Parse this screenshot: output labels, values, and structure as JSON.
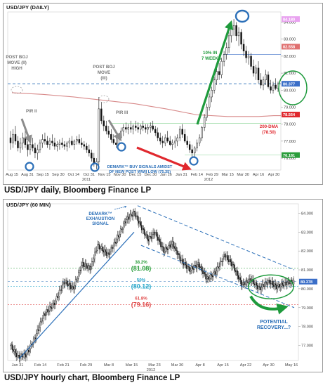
{
  "captions": {
    "daily": "USD/JPY daily, Bloomberg Finance LP",
    "hourly": "USD/JPY hourly chart, Bloomberg Finance LP"
  },
  "colors": {
    "candle": "#111111",
    "dma": "#d88a8a",
    "dashed_blue": "#2b6fb8",
    "green": "#1e9a3c",
    "red": "#e0282e",
    "gray_arrow": "#8c8c8c",
    "fib_green": "#2a9d3b",
    "fib_cyan": "#27a6c9",
    "fib_red": "#e04a4a"
  },
  "chart_data": [
    {
      "type": "candlestick",
      "title": "USD/JPY (DAILY)",
      "x_tick_labels": [
        "Aug 15",
        "Aug 31",
        "Sep 15",
        "Sep 30",
        "Oct 14",
        "Oct 31",
        "Nov 15",
        "Nov 30",
        "Dec 15",
        "Dec 30",
        "Jan 16",
        "Jan 31",
        "Feb 14",
        "Feb 29",
        "Mar 15",
        "Mar 30",
        "Apr 16",
        "Apr 30"
      ],
      "x_year_labels": [
        "2011",
        "2012"
      ],
      "y_tick_labels": [
        "84.000",
        "83.000",
        "82.000",
        "81.000",
        "80.000",
        "79.000",
        "78.000",
        "77.000",
        "76.000"
      ],
      "ylim": [
        75.3,
        84.6
      ],
      "highlighted_levels": [
        {
          "label": "84.180",
          "value": 84.18,
          "color": "#e9a3f0"
        },
        {
          "label": "82.558",
          "value": 82.558,
          "color": "#e07070"
        },
        {
          "label": "80.377",
          "value": 80.377,
          "color": "#3a6ec8"
        },
        {
          "label": "78.564",
          "value": 78.564,
          "color": "#e0282e"
        },
        {
          "label": "76.181",
          "value": 76.181,
          "color": "#2a9d3b"
        }
      ],
      "series": [
        {
          "name": "200-DMA",
          "label": "200-DMA",
          "label_value": "(78.50)",
          "x": [
            "Aug 15",
            "Sep 15",
            "Oct 14",
            "Nov 15",
            "Dec 15",
            "Jan 16",
            "Feb 14",
            "Mar 15",
            "Apr 16",
            "Apr 30"
          ],
          "values": [
            79.85,
            79.75,
            79.6,
            79.4,
            79.2,
            78.9,
            78.55,
            78.45,
            78.45,
            78.5
          ]
        }
      ],
      "annotations": {
        "post_boj_ii": "POST BOJ MOVE (II) HIGH",
        "post_boj_iii": "POST BOJ MOVE (III)",
        "pir_ii": "PIR II",
        "pir_iii": "PIR III",
        "rally": "10% IN 7 WEEKS",
        "demark": "DEMARK™ BUY SIGNALS AMIDST OF NEW POST WWII LOW (75.35)"
      },
      "bars": [
        {
          "o": 77.2,
          "h": 77.6,
          "l": 76.5,
          "c": 76.9
        },
        {
          "o": 76.9,
          "h": 77.7,
          "l": 76.6,
          "c": 77.4
        },
        {
          "o": 77.4,
          "h": 77.9,
          "l": 76.8,
          "c": 77.0
        },
        {
          "o": 77.0,
          "h": 77.3,
          "l": 76.4,
          "c": 76.6
        },
        {
          "o": 76.6,
          "h": 77.2,
          "l": 76.3,
          "c": 76.9
        },
        {
          "o": 76.9,
          "h": 77.5,
          "l": 76.5,
          "c": 77.2
        },
        {
          "o": 77.2,
          "h": 77.6,
          "l": 76.6,
          "c": 76.8
        },
        {
          "o": 76.8,
          "h": 77.0,
          "l": 76.1,
          "c": 76.5
        },
        {
          "o": 76.5,
          "h": 77.0,
          "l": 76.2,
          "c": 76.8
        },
        {
          "o": 76.8,
          "h": 77.2,
          "l": 76.4,
          "c": 76.6
        },
        {
          "o": 76.6,
          "h": 76.9,
          "l": 76.0,
          "c": 76.3
        },
        {
          "o": 76.3,
          "h": 76.8,
          "l": 75.9,
          "c": 76.5
        },
        {
          "o": 76.5,
          "h": 77.1,
          "l": 76.3,
          "c": 76.9
        },
        {
          "o": 76.9,
          "h": 77.4,
          "l": 76.6,
          "c": 77.1
        },
        {
          "o": 77.1,
          "h": 77.5,
          "l": 76.8,
          "c": 77.0
        },
        {
          "o": 77.0,
          "h": 77.3,
          "l": 76.6,
          "c": 76.8
        },
        {
          "o": 76.8,
          "h": 77.2,
          "l": 76.5,
          "c": 77.0
        },
        {
          "o": 77.0,
          "h": 77.4,
          "l": 76.7,
          "c": 76.9
        },
        {
          "o": 76.9,
          "h": 77.2,
          "l": 76.5,
          "c": 76.7
        },
        {
          "o": 76.7,
          "h": 77.0,
          "l": 76.4,
          "c": 76.8
        },
        {
          "o": 76.8,
          "h": 77.1,
          "l": 76.5,
          "c": 76.9
        },
        {
          "o": 76.9,
          "h": 77.2,
          "l": 76.6,
          "c": 76.8
        },
        {
          "o": 76.8,
          "h": 77.0,
          "l": 76.5,
          "c": 76.7
        },
        {
          "o": 76.7,
          "h": 77.0,
          "l": 76.4,
          "c": 76.9
        },
        {
          "o": 76.9,
          "h": 77.2,
          "l": 76.6,
          "c": 77.0
        },
        {
          "o": 77.0,
          "h": 77.3,
          "l": 76.7,
          "c": 76.8
        },
        {
          "o": 76.8,
          "h": 77.1,
          "l": 76.5,
          "c": 77.0
        },
        {
          "o": 77.0,
          "h": 77.3,
          "l": 76.8,
          "c": 77.1
        },
        {
          "o": 77.1,
          "h": 77.4,
          "l": 76.8,
          "c": 76.9
        },
        {
          "o": 76.9,
          "h": 77.2,
          "l": 76.6,
          "c": 76.8
        },
        {
          "o": 76.8,
          "h": 77.0,
          "l": 76.5,
          "c": 76.7
        },
        {
          "o": 76.7,
          "h": 76.9,
          "l": 76.3,
          "c": 76.5
        },
        {
          "o": 76.5,
          "h": 76.8,
          "l": 76.1,
          "c": 76.3
        },
        {
          "o": 76.3,
          "h": 76.5,
          "l": 75.8,
          "c": 76.0
        },
        {
          "o": 76.0,
          "h": 76.3,
          "l": 75.5,
          "c": 75.7
        },
        {
          "o": 75.7,
          "h": 76.0,
          "l": 75.35,
          "c": 75.8
        },
        {
          "o": 75.8,
          "h": 79.6,
          "l": 75.6,
          "c": 78.9
        },
        {
          "o": 78.9,
          "h": 79.3,
          "l": 78.0,
          "c": 78.2
        },
        {
          "o": 78.2,
          "h": 78.5,
          "l": 77.6,
          "c": 77.9
        },
        {
          "o": 77.9,
          "h": 78.2,
          "l": 77.4,
          "c": 77.6
        },
        {
          "o": 77.6,
          "h": 77.9,
          "l": 77.2,
          "c": 77.4
        },
        {
          "o": 77.4,
          "h": 77.7,
          "l": 76.9,
          "c": 77.1
        },
        {
          "o": 77.1,
          "h": 77.4,
          "l": 76.8,
          "c": 76.9
        },
        {
          "o": 76.9,
          "h": 77.2,
          "l": 76.6,
          "c": 76.8
        },
        {
          "o": 76.8,
          "h": 77.4,
          "l": 76.7,
          "c": 77.2
        },
        {
          "o": 77.2,
          "h": 77.8,
          "l": 77.0,
          "c": 77.6
        },
        {
          "o": 77.6,
          "h": 78.0,
          "l": 77.3,
          "c": 77.8
        },
        {
          "o": 77.8,
          "h": 78.1,
          "l": 77.5,
          "c": 77.7
        },
        {
          "o": 77.7,
          "h": 78.0,
          "l": 77.4,
          "c": 77.8
        },
        {
          "o": 77.8,
          "h": 78.2,
          "l": 77.5,
          "c": 77.7
        },
        {
          "o": 77.7,
          "h": 78.0,
          "l": 77.4,
          "c": 77.9
        },
        {
          "o": 77.9,
          "h": 78.2,
          "l": 77.6,
          "c": 77.8
        },
        {
          "o": 77.8,
          "h": 78.1,
          "l": 77.5,
          "c": 77.7
        },
        {
          "o": 77.7,
          "h": 78.0,
          "l": 77.4,
          "c": 77.9
        },
        {
          "o": 77.9,
          "h": 78.2,
          "l": 77.6,
          "c": 77.8
        },
        {
          "o": 77.8,
          "h": 78.0,
          "l": 77.5,
          "c": 77.7
        },
        {
          "o": 77.7,
          "h": 78.0,
          "l": 77.4,
          "c": 77.8
        },
        {
          "o": 77.8,
          "h": 78.1,
          "l": 77.5,
          "c": 77.9
        },
        {
          "o": 77.9,
          "h": 78.2,
          "l": 77.6,
          "c": 77.7
        },
        {
          "o": 77.7,
          "h": 77.9,
          "l": 77.3,
          "c": 77.5
        },
        {
          "o": 77.5,
          "h": 77.8,
          "l": 77.0,
          "c": 77.2
        },
        {
          "o": 77.2,
          "h": 77.5,
          "l": 76.8,
          "c": 77.0
        },
        {
          "o": 77.0,
          "h": 77.3,
          "l": 76.6,
          "c": 76.9
        },
        {
          "o": 76.9,
          "h": 77.4,
          "l": 76.7,
          "c": 77.2
        },
        {
          "o": 77.2,
          "h": 77.6,
          "l": 76.9,
          "c": 77.0
        },
        {
          "o": 77.0,
          "h": 77.3,
          "l": 76.7,
          "c": 76.8
        },
        {
          "o": 76.8,
          "h": 77.1,
          "l": 76.5,
          "c": 76.9
        },
        {
          "o": 76.9,
          "h": 77.3,
          "l": 76.6,
          "c": 77.0
        },
        {
          "o": 77.0,
          "h": 77.4,
          "l": 76.7,
          "c": 77.2
        },
        {
          "o": 77.2,
          "h": 77.9,
          "l": 77.0,
          "c": 77.7
        },
        {
          "o": 77.7,
          "h": 78.0,
          "l": 77.2,
          "c": 77.4
        },
        {
          "o": 77.4,
          "h": 77.7,
          "l": 76.9,
          "c": 77.0
        },
        {
          "o": 77.0,
          "h": 77.3,
          "l": 76.6,
          "c": 76.8
        },
        {
          "o": 76.8,
          "h": 77.0,
          "l": 76.3,
          "c": 76.5
        },
        {
          "o": 76.5,
          "h": 76.8,
          "l": 76.0,
          "c": 76.3
        },
        {
          "o": 76.3,
          "h": 76.7,
          "l": 76.0,
          "c": 76.6
        },
        {
          "o": 76.6,
          "h": 77.1,
          "l": 76.4,
          "c": 76.9
        },
        {
          "o": 76.9,
          "h": 77.4,
          "l": 76.7,
          "c": 77.2
        },
        {
          "o": 77.2,
          "h": 77.9,
          "l": 77.0,
          "c": 77.8
        },
        {
          "o": 77.8,
          "h": 78.6,
          "l": 77.6,
          "c": 78.4
        },
        {
          "o": 78.4,
          "h": 79.2,
          "l": 78.2,
          "c": 79.0
        },
        {
          "o": 79.0,
          "h": 79.8,
          "l": 78.8,
          "c": 79.6
        },
        {
          "o": 79.6,
          "h": 80.2,
          "l": 79.3,
          "c": 80.0
        },
        {
          "o": 80.0,
          "h": 80.8,
          "l": 79.8,
          "c": 80.6
        },
        {
          "o": 80.6,
          "h": 81.3,
          "l": 80.3,
          "c": 81.1
        },
        {
          "o": 81.1,
          "h": 81.6,
          "l": 80.6,
          "c": 80.9
        },
        {
          "o": 80.9,
          "h": 81.9,
          "l": 80.7,
          "c": 81.7
        },
        {
          "o": 81.7,
          "h": 82.3,
          "l": 81.4,
          "c": 82.1
        },
        {
          "o": 82.1,
          "h": 82.8,
          "l": 81.8,
          "c": 82.5
        },
        {
          "o": 82.5,
          "h": 83.4,
          "l": 82.2,
          "c": 83.2
        },
        {
          "o": 83.2,
          "h": 83.9,
          "l": 82.8,
          "c": 83.6
        },
        {
          "o": 83.6,
          "h": 84.18,
          "l": 83.2,
          "c": 83.8
        },
        {
          "o": 83.8,
          "h": 84.0,
          "l": 82.9,
          "c": 83.2
        },
        {
          "o": 83.2,
          "h": 83.7,
          "l": 82.6,
          "c": 83.4
        },
        {
          "o": 83.4,
          "h": 83.6,
          "l": 82.4,
          "c": 82.7
        },
        {
          "o": 82.7,
          "h": 83.0,
          "l": 82.0,
          "c": 82.3
        },
        {
          "o": 82.3,
          "h": 82.6,
          "l": 81.6,
          "c": 81.9
        },
        {
          "o": 81.9,
          "h": 82.3,
          "l": 81.5,
          "c": 82.0
        },
        {
          "o": 82.0,
          "h": 82.2,
          "l": 81.2,
          "c": 81.4
        },
        {
          "o": 81.4,
          "h": 81.8,
          "l": 80.8,
          "c": 81.0
        },
        {
          "o": 81.0,
          "h": 81.5,
          "l": 80.6,
          "c": 81.3
        },
        {
          "o": 81.3,
          "h": 81.7,
          "l": 80.4,
          "c": 80.6
        },
        {
          "o": 80.6,
          "h": 81.0,
          "l": 80.1,
          "c": 80.3
        },
        {
          "o": 80.3,
          "h": 80.8,
          "l": 80.0,
          "c": 80.6
        },
        {
          "o": 80.6,
          "h": 81.2,
          "l": 80.3,
          "c": 80.9
        },
        {
          "o": 80.9,
          "h": 81.1,
          "l": 80.1,
          "c": 80.2
        },
        {
          "o": 80.2,
          "h": 80.6,
          "l": 79.8,
          "c": 80.0
        },
        {
          "o": 80.0,
          "h": 80.5,
          "l": 79.8,
          "c": 80.3
        },
        {
          "o": 80.3,
          "h": 80.7,
          "l": 80.0,
          "c": 80.1
        },
        {
          "o": 80.1,
          "h": 80.5,
          "l": 79.9,
          "c": 80.38
        }
      ]
    },
    {
      "type": "candlestick",
      "title": "USD/JPY (60 MIN)",
      "x_tick_labels": [
        "Jan 31",
        "Feb 14",
        "Feb 21",
        "Feb 29",
        "Mar 8",
        "Mar 15",
        "Mar 23",
        "Mar 30",
        "Apr 8",
        "Apr 15",
        "Apr 22",
        "Apr 30",
        "May 16"
      ],
      "x_year_labels": [
        "2012"
      ],
      "y_tick_labels": [
        "84.000",
        "83.000",
        "82.000",
        "81.000",
        "80.000",
        "79.000",
        "78.000",
        "77.000"
      ],
      "ylim": [
        76.2,
        84.5
      ],
      "highlighted_levels": [
        {
          "label": "80.378",
          "value": 80.378,
          "color": "#3a6ec8"
        }
      ],
      "fibonacci": [
        {
          "label": "38.2%",
          "value_label": "(81.08)",
          "value": 81.08,
          "color": "#2a9d3b"
        },
        {
          "label": "50%",
          "value_label": "(80.12)",
          "value": 80.12,
          "color": "#27a6c9"
        },
        {
          "label": "61.8%",
          "value_label": "(79.16)",
          "value": 79.16,
          "color": "#e04a4a"
        }
      ],
      "annotations": {
        "demark": "DEMARK™ EXHAUSTION SIGNAL",
        "recovery": "POTENTIAL RECOVERY...?"
      },
      "path": [
        [
          0,
          77.0
        ],
        [
          8,
          76.4
        ],
        [
          18,
          76.5
        ],
        [
          28,
          77.4
        ],
        [
          38,
          78.6
        ],
        [
          50,
          79.2
        ],
        [
          62,
          80.4
        ],
        [
          72,
          80.0
        ],
        [
          82,
          81.3
        ],
        [
          92,
          81.1
        ],
        [
          100,
          82.3
        ],
        [
          112,
          81.8
        ],
        [
          122,
          82.6
        ],
        [
          132,
          83.6
        ],
        [
          142,
          84.05
        ],
        [
          150,
          83.3
        ],
        [
          158,
          82.6
        ],
        [
          166,
          83.0
        ],
        [
          176,
          82.0
        ],
        [
          186,
          82.4
        ],
        [
          196,
          81.5
        ],
        [
          206,
          81.0
        ],
        [
          216,
          81.3
        ],
        [
          226,
          80.5
        ],
        [
          236,
          80.9
        ],
        [
          246,
          81.8
        ],
        [
          256,
          81.2
        ],
        [
          266,
          80.2
        ],
        [
          276,
          80.5
        ],
        [
          286,
          80.0
        ],
        [
          296,
          80.4
        ],
        [
          306,
          80.1
        ],
        [
          316,
          80.3
        ],
        [
          326,
          80.38
        ]
      ]
    }
  ]
}
